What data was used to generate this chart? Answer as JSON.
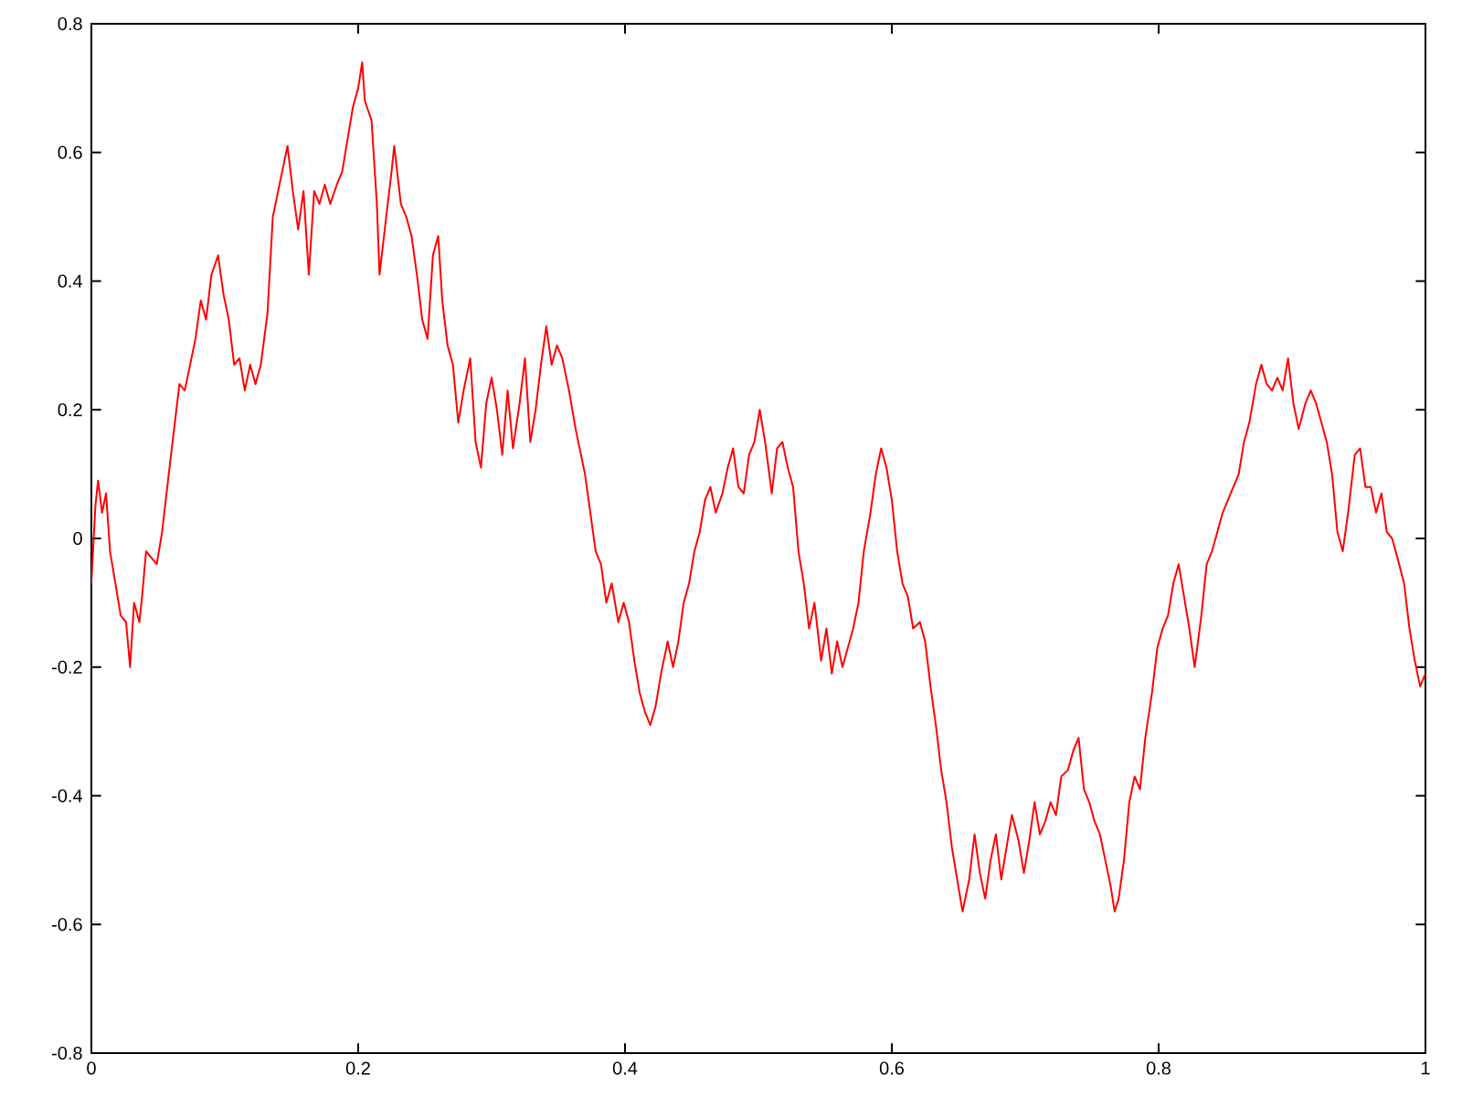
{
  "chart_data": {
    "type": "line",
    "x": [
      0,
      0.003,
      0.005,
      0.008,
      0.011,
      0.014,
      0.018,
      0.022,
      0.026,
      0.029,
      0.032,
      0.036,
      0.038,
      0.041,
      0.045,
      0.049,
      0.053,
      0.058,
      0.062,
      0.066,
      0.07,
      0.074,
      0.078,
      0.082,
      0.086,
      0.09,
      0.095,
      0.099,
      0.103,
      0.107,
      0.111,
      0.115,
      0.119,
      0.123,
      0.127,
      0.132,
      0.136,
      0.14,
      0.144,
      0.147,
      0.151,
      0.155,
      0.159,
      0.163,
      0.167,
      0.171,
      0.175,
      0.179,
      0.184,
      0.188,
      0.192,
      0.196,
      0.2,
      0.203,
      0.205,
      0.21,
      0.214,
      0.216,
      0.221,
      0.225,
      0.227,
      0.232,
      0.236,
      0.24,
      0.244,
      0.248,
      0.252,
      0.256,
      0.26,
      0.263,
      0.267,
      0.271,
      0.275,
      0.279,
      0.284,
      0.288,
      0.292,
      0.296,
      0.3,
      0.304,
      0.308,
      0.312,
      0.316,
      0.321,
      0.325,
      0.329,
      0.333,
      0.337,
      0.341,
      0.345,
      0.349,
      0.353,
      0.358,
      0.363,
      0.37,
      0.374,
      0.378,
      0.382,
      0.386,
      0.39,
      0.395,
      0.399,
      0.403,
      0.407,
      0.411,
      0.415,
      0.419,
      0.423,
      0.427,
      0.432,
      0.436,
      0.44,
      0.444,
      0.448,
      0.452,
      0.456,
      0.46,
      0.464,
      0.468,
      0.473,
      0.477,
      0.481,
      0.485,
      0.489,
      0.493,
      0.497,
      0.501,
      0.505,
      0.51,
      0.514,
      0.518,
      0.522,
      0.526,
      0.53,
      0.534,
      0.538,
      0.542,
      0.547,
      0.551,
      0.555,
      0.559,
      0.563,
      0.567,
      0.571,
      0.575,
      0.579,
      0.584,
      0.588,
      0.592,
      0.596,
      0.6,
      0.604,
      0.608,
      0.612,
      0.616,
      0.621,
      0.625,
      0.629,
      0.633,
      0.637,
      0.641,
      0.645,
      0.649,
      0.653,
      0.658,
      0.662,
      0.666,
      0.67,
      0.674,
      0.678,
      0.682,
      0.686,
      0.69,
      0.695,
      0.699,
      0.703,
      0.707,
      0.711,
      0.715,
      0.719,
      0.723,
      0.727,
      0.732,
      0.736,
      0.74,
      0.744,
      0.748,
      0.752,
      0.756,
      0.76,
      0.764,
      0.767,
      0.77,
      0.774,
      0.778,
      0.782,
      0.786,
      0.79,
      0.795,
      0.799,
      0.803,
      0.807,
      0.811,
      0.815,
      0.819,
      0.823,
      0.827,
      0.832,
      0.836,
      0.84,
      0.844,
      0.848,
      0.852,
      0.856,
      0.86,
      0.864,
      0.868,
      0.873,
      0.877,
      0.881,
      0.885,
      0.889,
      0.893,
      0.897,
      0.901,
      0.905,
      0.91,
      0.914,
      0.918,
      0.922,
      0.926,
      0.93,
      0.934,
      0.938,
      0.942,
      0.947,
      0.951,
      0.955,
      0.959,
      0.963,
      0.967,
      0.971,
      0.975,
      0.979,
      0.984,
      0.988,
      0.992,
      0.996,
      1
    ],
    "series": [
      {
        "color": "#ff0000",
        "values": [
          -0.07,
          0.05,
          0.09,
          0.04,
          0.07,
          -0.02,
          -0.07,
          -0.12,
          -0.13,
          -0.2,
          -0.1,
          -0.13,
          -0.09,
          -0.02,
          -0.03,
          -0.04,
          0.01,
          0.1,
          0.17,
          0.24,
          0.23,
          0.27,
          0.31,
          0.37,
          0.34,
          0.41,
          0.44,
          0.38,
          0.34,
          0.27,
          0.28,
          0.23,
          0.27,
          0.24,
          0.27,
          0.35,
          0.5,
          0.54,
          0.58,
          0.61,
          0.54,
          0.48,
          0.54,
          0.41,
          0.54,
          0.52,
          0.55,
          0.52,
          0.55,
          0.57,
          0.62,
          0.67,
          0.7,
          0.74,
          0.68,
          0.65,
          0.52,
          0.41,
          0.5,
          0.57,
          0.61,
          0.52,
          0.5,
          0.47,
          0.41,
          0.34,
          0.31,
          0.44,
          0.47,
          0.37,
          0.3,
          0.27,
          0.18,
          0.23,
          0.28,
          0.15,
          0.11,
          0.21,
          0.25,
          0.2,
          0.13,
          0.23,
          0.14,
          0.21,
          0.28,
          0.15,
          0.2,
          0.27,
          0.33,
          0.27,
          0.3,
          0.28,
          0.23,
          0.17,
          0.1,
          0.04,
          -0.02,
          -0.04,
          -0.1,
          -0.07,
          -0.13,
          -0.1,
          -0.13,
          -0.19,
          -0.24,
          -0.27,
          -0.29,
          -0.26,
          -0.21,
          -0.16,
          -0.2,
          -0.16,
          -0.1,
          -0.07,
          -0.02,
          0.01,
          0.06,
          0.08,
          0.04,
          0.07,
          0.11,
          0.14,
          0.08,
          0.07,
          0.13,
          0.15,
          0.2,
          0.15,
          0.07,
          0.14,
          0.15,
          0.11,
          0.08,
          -0.02,
          -0.07,
          -0.14,
          -0.1,
          -0.19,
          -0.14,
          -0.21,
          -0.16,
          -0.2,
          -0.17,
          -0.14,
          -0.1,
          -0.02,
          0.04,
          0.1,
          0.14,
          0.11,
          0.06,
          -0.02,
          -0.07,
          -0.09,
          -0.14,
          -0.13,
          -0.16,
          -0.23,
          -0.29,
          -0.36,
          -0.41,
          -0.48,
          -0.53,
          -0.58,
          -0.53,
          -0.46,
          -0.52,
          -0.56,
          -0.5,
          -0.46,
          -0.53,
          -0.48,
          -0.43,
          -0.47,
          -0.52,
          -0.47,
          -0.41,
          -0.46,
          -0.44,
          -0.41,
          -0.43,
          -0.37,
          -0.36,
          -0.33,
          -0.31,
          -0.39,
          -0.41,
          -0.44,
          -0.46,
          -0.5,
          -0.54,
          -0.58,
          -0.56,
          -0.5,
          -0.41,
          -0.37,
          -0.39,
          -0.31,
          -0.24,
          -0.17,
          -0.14,
          -0.12,
          -0.07,
          -0.04,
          -0.09,
          -0.14,
          -0.2,
          -0.12,
          -0.04,
          -0.02,
          0.01,
          0.04,
          0.06,
          0.08,
          0.1,
          0.15,
          0.18,
          0.24,
          0.27,
          0.24,
          0.23,
          0.25,
          0.23,
          0.28,
          0.21,
          0.17,
          0.21,
          0.23,
          0.21,
          0.18,
          0.15,
          0.1,
          0.01,
          -0.02,
          0.04,
          0.13,
          0.14,
          0.08,
          0.08,
          0.04,
          0.07,
          0.01,
          0,
          -0.03,
          -0.07,
          -0.14,
          -0.19,
          -0.23,
          -0.21
        ]
      }
    ],
    "xlim": [
      0,
      1
    ],
    "ylim": [
      -0.8,
      0.8
    ],
    "xticks": [
      0,
      0.2,
      0.4,
      0.6,
      0.8,
      1
    ],
    "yticks": [
      -0.8,
      -0.6,
      -0.4,
      -0.2,
      0,
      0.2,
      0.4,
      0.6,
      0.8
    ],
    "grid": false,
    "marker": "none",
    "line_style": "solid"
  }
}
